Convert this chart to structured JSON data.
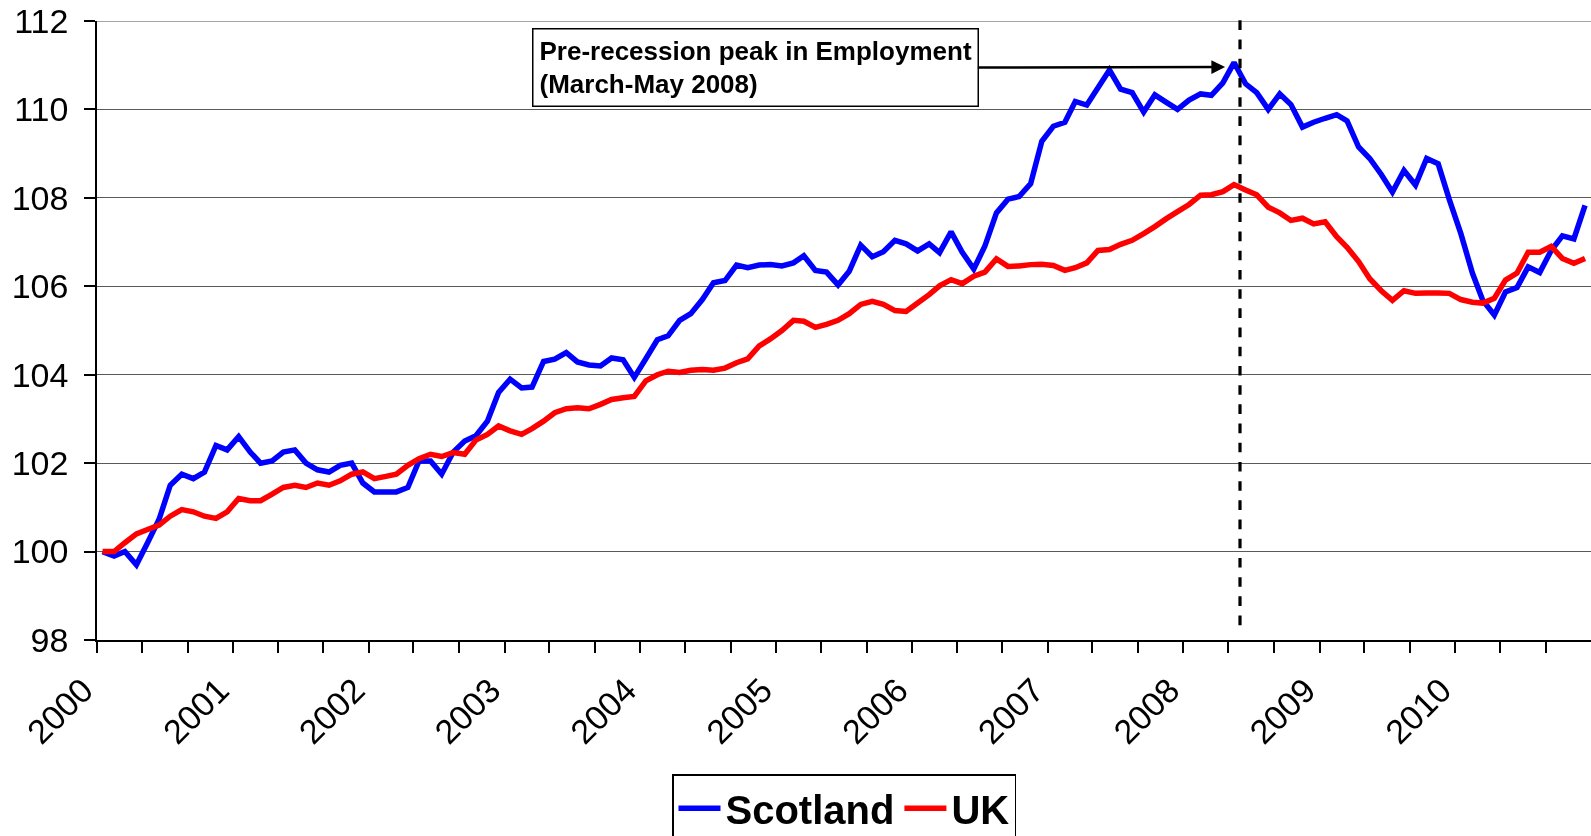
{
  "chart_data": {
    "type": "line",
    "x": [
      "2000-01-16",
      "2000-02-16",
      "2000-03-16",
      "2000-04-16",
      "2000-05-16",
      "2000-06-16",
      "2000-07-16",
      "2000-08-16",
      "2000-09-16",
      "2000-10-16",
      "2000-11-16",
      "2000-12-16",
      "2001-01-16",
      "2001-02-16",
      "2001-03-16",
      "2001-04-16",
      "2001-05-16",
      "2001-06-16",
      "2001-07-16",
      "2001-08-16",
      "2001-09-16",
      "2001-10-16",
      "2001-11-16",
      "2001-12-16",
      "2002-01-16",
      "2002-02-16",
      "2002-03-16",
      "2002-04-16",
      "2002-05-16",
      "2002-06-16",
      "2002-07-16",
      "2002-08-16",
      "2002-09-16",
      "2002-10-16",
      "2002-11-16",
      "2002-12-16",
      "2003-01-16",
      "2003-02-16",
      "2003-03-16",
      "2003-04-16",
      "2003-05-16",
      "2003-06-16",
      "2003-07-16",
      "2003-08-16",
      "2003-09-16",
      "2003-10-16",
      "2003-11-16",
      "2003-12-16",
      "2004-01-16",
      "2004-02-16",
      "2004-03-16",
      "2004-04-16",
      "2004-05-16",
      "2004-06-16",
      "2004-07-16",
      "2004-08-16",
      "2004-09-16",
      "2004-10-16",
      "2004-11-16",
      "2004-12-16",
      "2005-01-16",
      "2005-02-16",
      "2005-03-16",
      "2005-04-16",
      "2005-05-16",
      "2005-06-16",
      "2005-07-16",
      "2005-08-16",
      "2005-09-16",
      "2005-10-16",
      "2005-11-16",
      "2005-12-16",
      "2006-01-16",
      "2006-02-16",
      "2006-03-16",
      "2006-04-16",
      "2006-05-16",
      "2006-06-16",
      "2006-07-16",
      "2006-08-16",
      "2006-09-16",
      "2006-10-16",
      "2006-11-16",
      "2006-12-16",
      "2007-01-16",
      "2007-02-16",
      "2007-03-16",
      "2007-04-16",
      "2007-05-16",
      "2007-06-16",
      "2007-07-16",
      "2007-08-16",
      "2007-09-16",
      "2007-10-16",
      "2007-11-16",
      "2007-12-16",
      "2008-01-16",
      "2008-02-16",
      "2008-03-16",
      "2008-04-16",
      "2008-05-16",
      "2008-06-16",
      "2008-07-16",
      "2008-08-16",
      "2008-09-16",
      "2008-10-16",
      "2008-11-16",
      "2008-12-16",
      "2009-01-16",
      "2009-02-16",
      "2009-03-16",
      "2009-04-16",
      "2009-05-16",
      "2009-06-16",
      "2009-07-16",
      "2009-08-16",
      "2009-09-16",
      "2009-10-16",
      "2009-11-16",
      "2009-12-16",
      "2010-01-16",
      "2010-02-16",
      "2010-03-16",
      "2010-04-16",
      "2010-05-16",
      "2010-06-16",
      "2010-07-16",
      "2010-08-16",
      "2010-09-16",
      "2010-10-16",
      "2010-11-16",
      "2010-12-16"
    ],
    "series": [
      {
        "name": "Scotland",
        "color": "#0000ff",
        "values": [
          100.0,
          99.9,
          100.0,
          99.7,
          100.2,
          100.73,
          101.5,
          101.75,
          101.65,
          101.8,
          102.4,
          102.3,
          102.6,
          102.25,
          102.0,
          102.05,
          102.25,
          102.3,
          102.0,
          101.85,
          101.8,
          101.95,
          102.0,
          101.55,
          101.35,
          101.35,
          101.35,
          101.45,
          102.05,
          102.05,
          101.75,
          102.25,
          102.5,
          102.62,
          102.95,
          103.6,
          103.9,
          103.7,
          103.72,
          104.3,
          104.35,
          104.5,
          104.29,
          104.22,
          104.2,
          104.38,
          104.34,
          103.94,
          104.36,
          104.79,
          104.88,
          105.23,
          105.38,
          105.7,
          106.08,
          106.13,
          106.48,
          106.42,
          106.48,
          106.49,
          106.46,
          106.53,
          106.69,
          106.36,
          106.32,
          106.03,
          106.34,
          106.93,
          106.67,
          106.78,
          107.04,
          106.96,
          106.8,
          106.96,
          106.76,
          107.23,
          106.77,
          106.39,
          106.91,
          107.66,
          107.97,
          108.03,
          108.32,
          109.28,
          109.62,
          109.71,
          110.18,
          110.1,
          110.49,
          110.89,
          110.46,
          110.38,
          109.94,
          110.33,
          110.16,
          110.0,
          110.21,
          110.35,
          110.32,
          110.6,
          111.06,
          110.58,
          110.38,
          110.0,
          110.35,
          110.11,
          109.6,
          109.71,
          109.8,
          109.88,
          109.74,
          109.15,
          108.89,
          108.53,
          108.13,
          108.62,
          108.29,
          108.89,
          108.77,
          107.96,
          107.19,
          106.3,
          105.68,
          105.35,
          105.87,
          105.97,
          106.44,
          106.31,
          106.81,
          107.14,
          107.07,
          107.83
        ]
      },
      {
        "name": "UK",
        "color": "#ff0000",
        "values": [
          100.0,
          100.0,
          100.2,
          100.4,
          100.5,
          100.6,
          100.8,
          100.95,
          100.9,
          100.8,
          100.75,
          100.9,
          101.2,
          101.15,
          101.15,
          101.3,
          101.45,
          101.5,
          101.45,
          101.55,
          101.5,
          101.6,
          101.75,
          101.8,
          101.65,
          101.7,
          101.75,
          101.95,
          102.1,
          102.2,
          102.15,
          102.24,
          102.2,
          102.52,
          102.65,
          102.84,
          102.73,
          102.65,
          102.78,
          102.95,
          103.14,
          103.23,
          103.25,
          103.23,
          103.33,
          103.44,
          103.48,
          103.51,
          103.86,
          104.0,
          104.08,
          104.05,
          104.1,
          104.12,
          104.1,
          104.15,
          104.27,
          104.36,
          104.65,
          104.81,
          105.0,
          105.23,
          105.21,
          105.07,
          105.14,
          105.23,
          105.38,
          105.59,
          105.66,
          105.59,
          105.45,
          105.43,
          105.62,
          105.81,
          106.01,
          106.15,
          106.06,
          106.23,
          106.32,
          106.62,
          106.45,
          106.46,
          106.49,
          106.5,
          106.47,
          106.36,
          106.42,
          106.53,
          106.81,
          106.83,
          106.95,
          107.04,
          107.19,
          107.35,
          107.53,
          107.69,
          107.85,
          108.06,
          108.07,
          108.14,
          108.3,
          108.18,
          108.07,
          107.79,
          107.66,
          107.49,
          107.54,
          107.41,
          107.46,
          107.12,
          106.88,
          106.56,
          106.17,
          105.9,
          105.68,
          105.9,
          105.84,
          105.85,
          105.85,
          105.84,
          105.7,
          105.64,
          105.62,
          105.73,
          106.14,
          106.3,
          106.77,
          106.77,
          106.9,
          106.63,
          106.52,
          106.63
        ]
      }
    ],
    "xlim": [
      "2000-01-01",
      "2011-01-01"
    ],
    "xticks": [
      {
        "value": "2000-01-01",
        "label": "2000"
      },
      {
        "value": "2000-05-01",
        "label": null
      },
      {
        "value": "2000-09-01",
        "label": null
      },
      {
        "value": "2001-01-01",
        "label": "2001"
      },
      {
        "value": "2001-05-01",
        "label": null
      },
      {
        "value": "2001-09-01",
        "label": null
      },
      {
        "value": "2002-01-01",
        "label": "2002"
      },
      {
        "value": "2002-05-01",
        "label": null
      },
      {
        "value": "2002-09-01",
        "label": null
      },
      {
        "value": "2003-01-01",
        "label": "2003"
      },
      {
        "value": "2003-05-01",
        "label": null
      },
      {
        "value": "2003-09-01",
        "label": null
      },
      {
        "value": "2004-01-01",
        "label": "2004"
      },
      {
        "value": "2004-05-01",
        "label": null
      },
      {
        "value": "2004-09-01",
        "label": null
      },
      {
        "value": "2005-01-01",
        "label": "2005"
      },
      {
        "value": "2005-05-01",
        "label": null
      },
      {
        "value": "2005-09-01",
        "label": null
      },
      {
        "value": "2006-01-01",
        "label": "2006"
      },
      {
        "value": "2006-05-01",
        "label": null
      },
      {
        "value": "2006-09-01",
        "label": null
      },
      {
        "value": "2007-01-01",
        "label": "2007"
      },
      {
        "value": "2007-05-01",
        "label": null
      },
      {
        "value": "2007-09-01",
        "label": null
      },
      {
        "value": "2008-01-01",
        "label": "2008"
      },
      {
        "value": "2008-05-01",
        "label": null
      },
      {
        "value": "2008-09-01",
        "label": null
      },
      {
        "value": "2009-01-01",
        "label": "2009"
      },
      {
        "value": "2009-05-01",
        "label": null
      },
      {
        "value": "2009-09-01",
        "label": null
      },
      {
        "value": "2010-01-01",
        "label": "2010"
      },
      {
        "value": "2010-05-01",
        "label": null
      },
      {
        "value": "2010-09-01",
        "label": null
      }
    ],
    "ylim": [
      98,
      112
    ],
    "yticks": [
      98,
      100,
      102,
      104,
      106,
      108,
      110,
      112
    ],
    "grid": "y",
    "legend": "bottom",
    "annotations": [
      {
        "text": "Pre-recession peak in Employment\n(March-May 2008)",
        "x": "2008-04-22",
        "y": 110.96
      }
    ],
    "ref_lines": [
      {
        "axis": "x",
        "value": "2008-06-01",
        "color": "#000000",
        "line_style": "dashed"
      }
    ]
  }
}
